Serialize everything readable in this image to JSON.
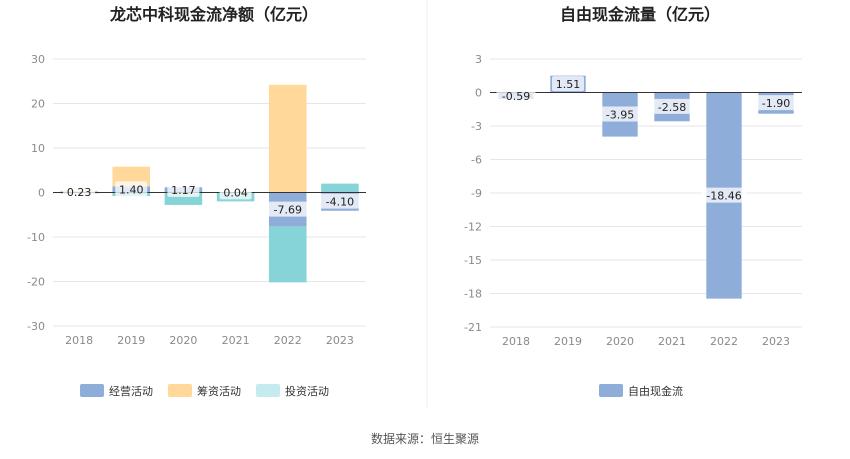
{
  "colors": {
    "operating": "#8fadd9",
    "financing": "#ffd89a",
    "investing": "#87d4d8",
    "free_cash_flow": "#8fadd9",
    "grid": "#e6e6e6",
    "axis": "#333333"
  },
  "source_text": "数据来源：恒生聚源",
  "chart_data": [
    {
      "type": "bar",
      "stacked": true,
      "title": "龙芯中科现金流净额（亿元）",
      "categories": [
        "2018",
        "2019",
        "2020",
        "2021",
        "2022",
        "2023"
      ],
      "ylim": [
        -30,
        30
      ],
      "yticks": [
        "30",
        "20",
        "10",
        "0",
        "-10",
        "-20",
        "-30"
      ],
      "grid": true,
      "legend_position": "bottom",
      "series": [
        {
          "name": "经营活动",
          "values": [
            0.23,
            1.4,
            1.17,
            0.04,
            -7.69,
            -4.1
          ]
        },
        {
          "name": "筹资活动",
          "values": [
            0.15,
            4.4,
            0.0,
            0.0,
            24.2,
            0.0
          ]
        },
        {
          "name": "投资活动",
          "values": [
            -0.2,
            -0.8,
            -2.8,
            -2.0,
            -12.5,
            2.0
          ]
        }
      ],
      "data_labels": [
        "0.23",
        "1.40",
        "1.17",
        "0.04",
        "-7.69",
        "-4.10"
      ]
    },
    {
      "type": "bar",
      "title": "自由现金流量（亿元）",
      "categories": [
        "2018",
        "2019",
        "2020",
        "2021",
        "2022",
        "2023"
      ],
      "ylim": [
        -21,
        3
      ],
      "yticks": [
        "3",
        "0",
        "-3",
        "-6",
        "-9",
        "-12",
        "-15",
        "-18",
        "-21"
      ],
      "grid": true,
      "legend_position": "bottom",
      "series": [
        {
          "name": "自由现金流",
          "values": [
            -0.59,
            1.51,
            -3.95,
            -2.58,
            -18.46,
            -1.9
          ]
        }
      ],
      "data_labels": [
        "-0.59",
        "1.51",
        "-3.95",
        "-2.58",
        "-18.46",
        "-1.90"
      ]
    }
  ]
}
